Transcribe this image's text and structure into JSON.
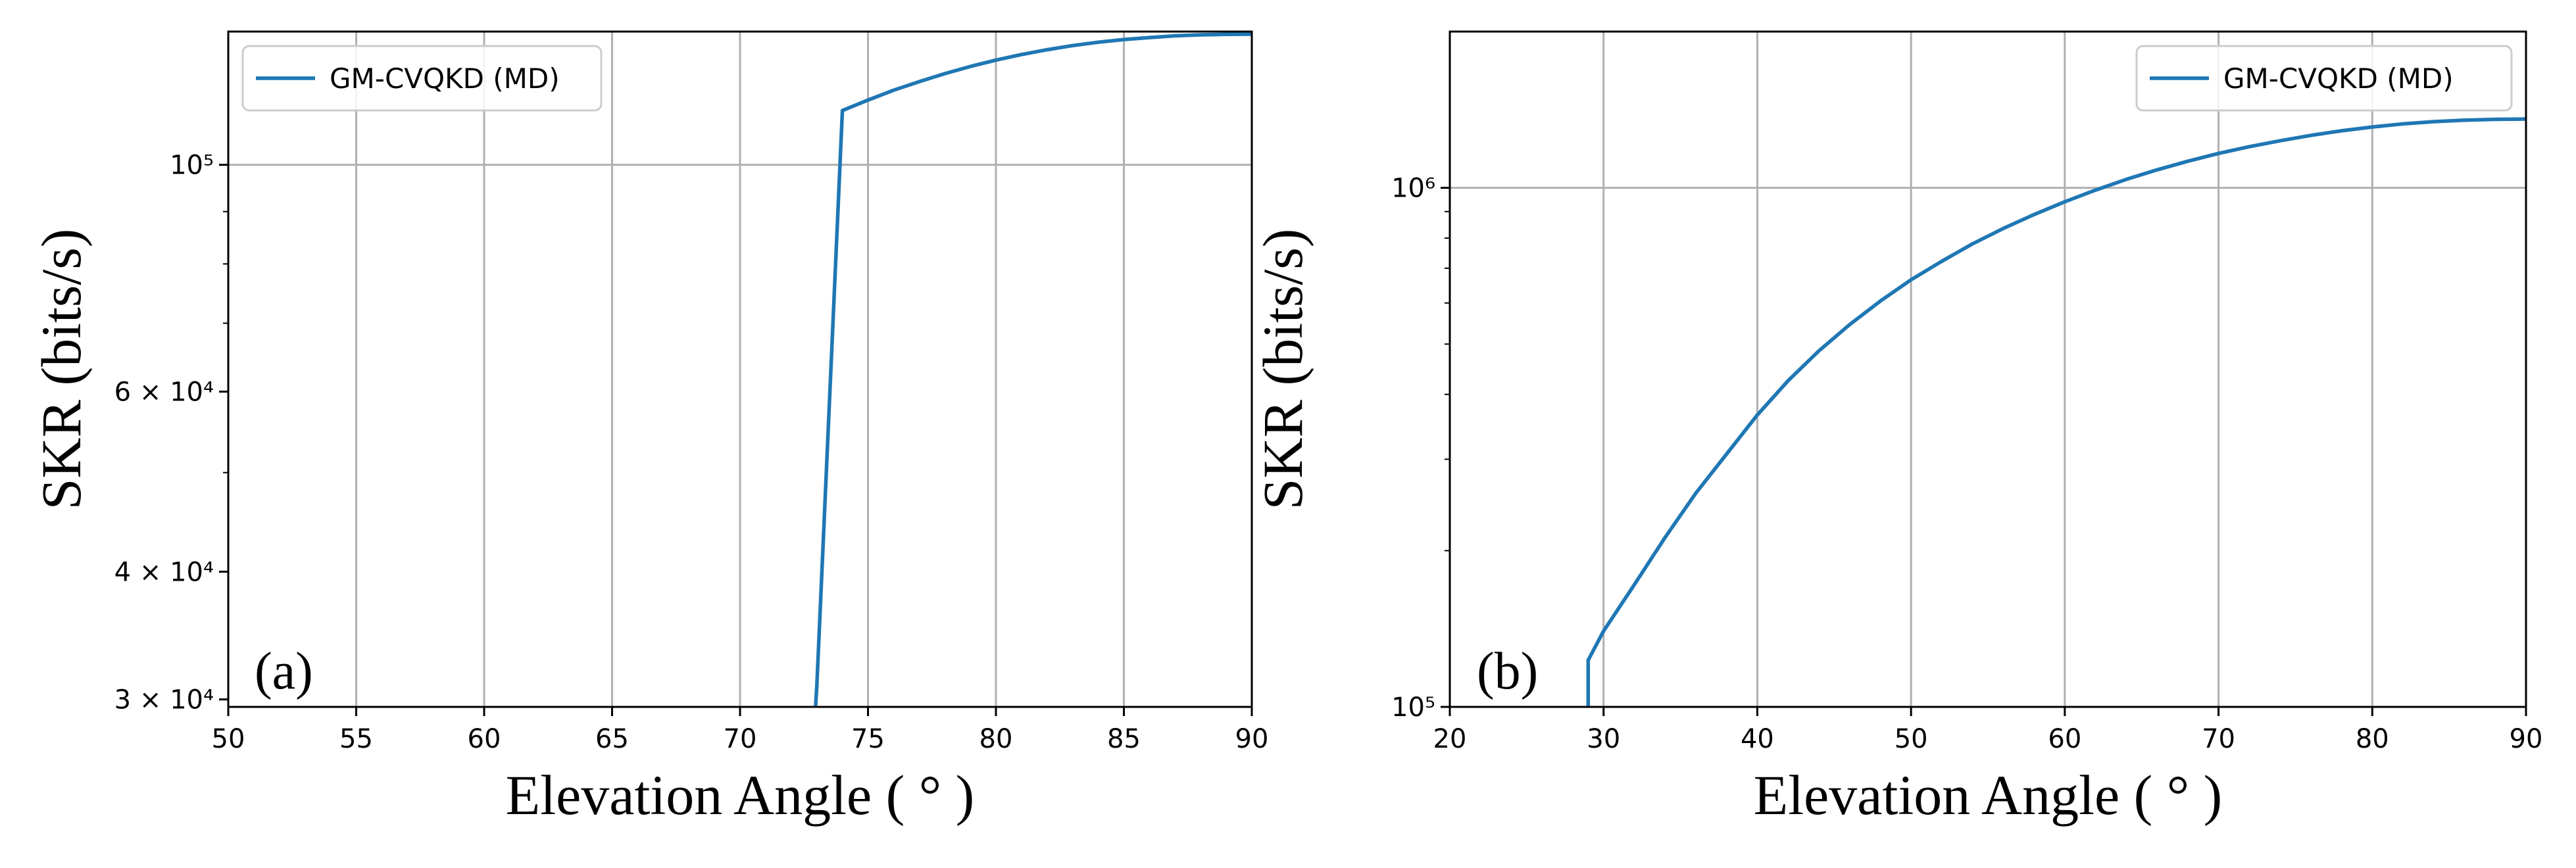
{
  "chart_data": [
    {
      "type": "line",
      "panel_label": "(a)",
      "xlabel": "Elevation Angle ( ° )",
      "ylabel": "SKR (bits/s)",
      "xlim": [
        50,
        90
      ],
      "ylim": [
        29500,
        135000
      ],
      "yscale": "log",
      "grid": true,
      "legend_position": "top-left",
      "x_ticks": [
        {
          "value": 50,
          "label": "50"
        },
        {
          "value": 55,
          "label": "55"
        },
        {
          "value": 60,
          "label": "60"
        },
        {
          "value": 65,
          "label": "65"
        },
        {
          "value": 70,
          "label": "70"
        },
        {
          "value": 75,
          "label": "75"
        },
        {
          "value": 80,
          "label": "80"
        },
        {
          "value": 85,
          "label": "85"
        },
        {
          "value": 90,
          "label": "90"
        }
      ],
      "y_ticks": [
        {
          "value": 30000,
          "label": "3 × 10⁴"
        },
        {
          "value": 40000,
          "label": "4 × 10⁴"
        },
        {
          "value": 60000,
          "label": "6 × 10⁴"
        },
        {
          "value": 100000,
          "label": "10⁵"
        }
      ],
      "y_grid_values": [
        100000
      ],
      "y_minor_ticks": [
        50000,
        70000,
        80000,
        90000
      ],
      "series": [
        {
          "name": "GM-CVQKD (MD)",
          "color": "#1f77b4",
          "x": [
            72.95,
            73.0,
            74.0,
            75,
            76,
            77,
            78,
            79,
            80,
            81,
            82,
            83,
            84,
            85,
            86,
            87,
            88,
            89,
            90
          ],
          "y": [
            29500,
            30900,
            113000,
            115700,
            118300,
            120600,
            122800,
            124800,
            126600,
            128200,
            129600,
            130800,
            131800,
            132600,
            133200,
            133700,
            134000,
            134150,
            134200
          ]
        }
      ]
    },
    {
      "type": "line",
      "panel_label": "(b)",
      "xlabel": "Elevation Angle ( ° )",
      "ylabel": "SKR (bits/s)",
      "xlim": [
        20,
        90
      ],
      "ylim": [
        100000,
        2000000
      ],
      "yscale": "log",
      "grid": true,
      "legend_position": "top-right",
      "x_ticks": [
        {
          "value": 20,
          "label": "20"
        },
        {
          "value": 30,
          "label": "30"
        },
        {
          "value": 40,
          "label": "40"
        },
        {
          "value": 50,
          "label": "50"
        },
        {
          "value": 60,
          "label": "60"
        },
        {
          "value": 70,
          "label": "70"
        },
        {
          "value": 80,
          "label": "80"
        },
        {
          "value": 90,
          "label": "90"
        }
      ],
      "y_ticks": [
        {
          "value": 100000,
          "label": "10⁵"
        },
        {
          "value": 1000000,
          "label": "10⁶"
        }
      ],
      "y_grid_values": [
        100000,
        1000000
      ],
      "y_minor_ticks": [
        200000,
        300000,
        400000,
        500000,
        600000,
        700000,
        800000,
        900000
      ],
      "series": [
        {
          "name": "GM-CVQKD (MD)",
          "color": "#1f77b4",
          "x": [
            29,
            29,
            30,
            32,
            34,
            36,
            38,
            40,
            42,
            44,
            46,
            48,
            50,
            52,
            54,
            56,
            58,
            60,
            62,
            64,
            66,
            68,
            70,
            72,
            74,
            76,
            78,
            80,
            82,
            84,
            86,
            88,
            90
          ],
          "y": [
            100000,
            123000,
            140000,
            172000,
            212000,
            258000,
            307000,
            365000,
            425000,
            485000,
            545000,
            605000,
            665000,
            722000,
            780000,
            835000,
            888000,
            940000,
            990000,
            1038000,
            1083000,
            1125000,
            1165000,
            1200000,
            1232000,
            1262000,
            1288000,
            1310000,
            1328000,
            1341000,
            1350000,
            1355000,
            1357000
          ]
        }
      ]
    }
  ]
}
